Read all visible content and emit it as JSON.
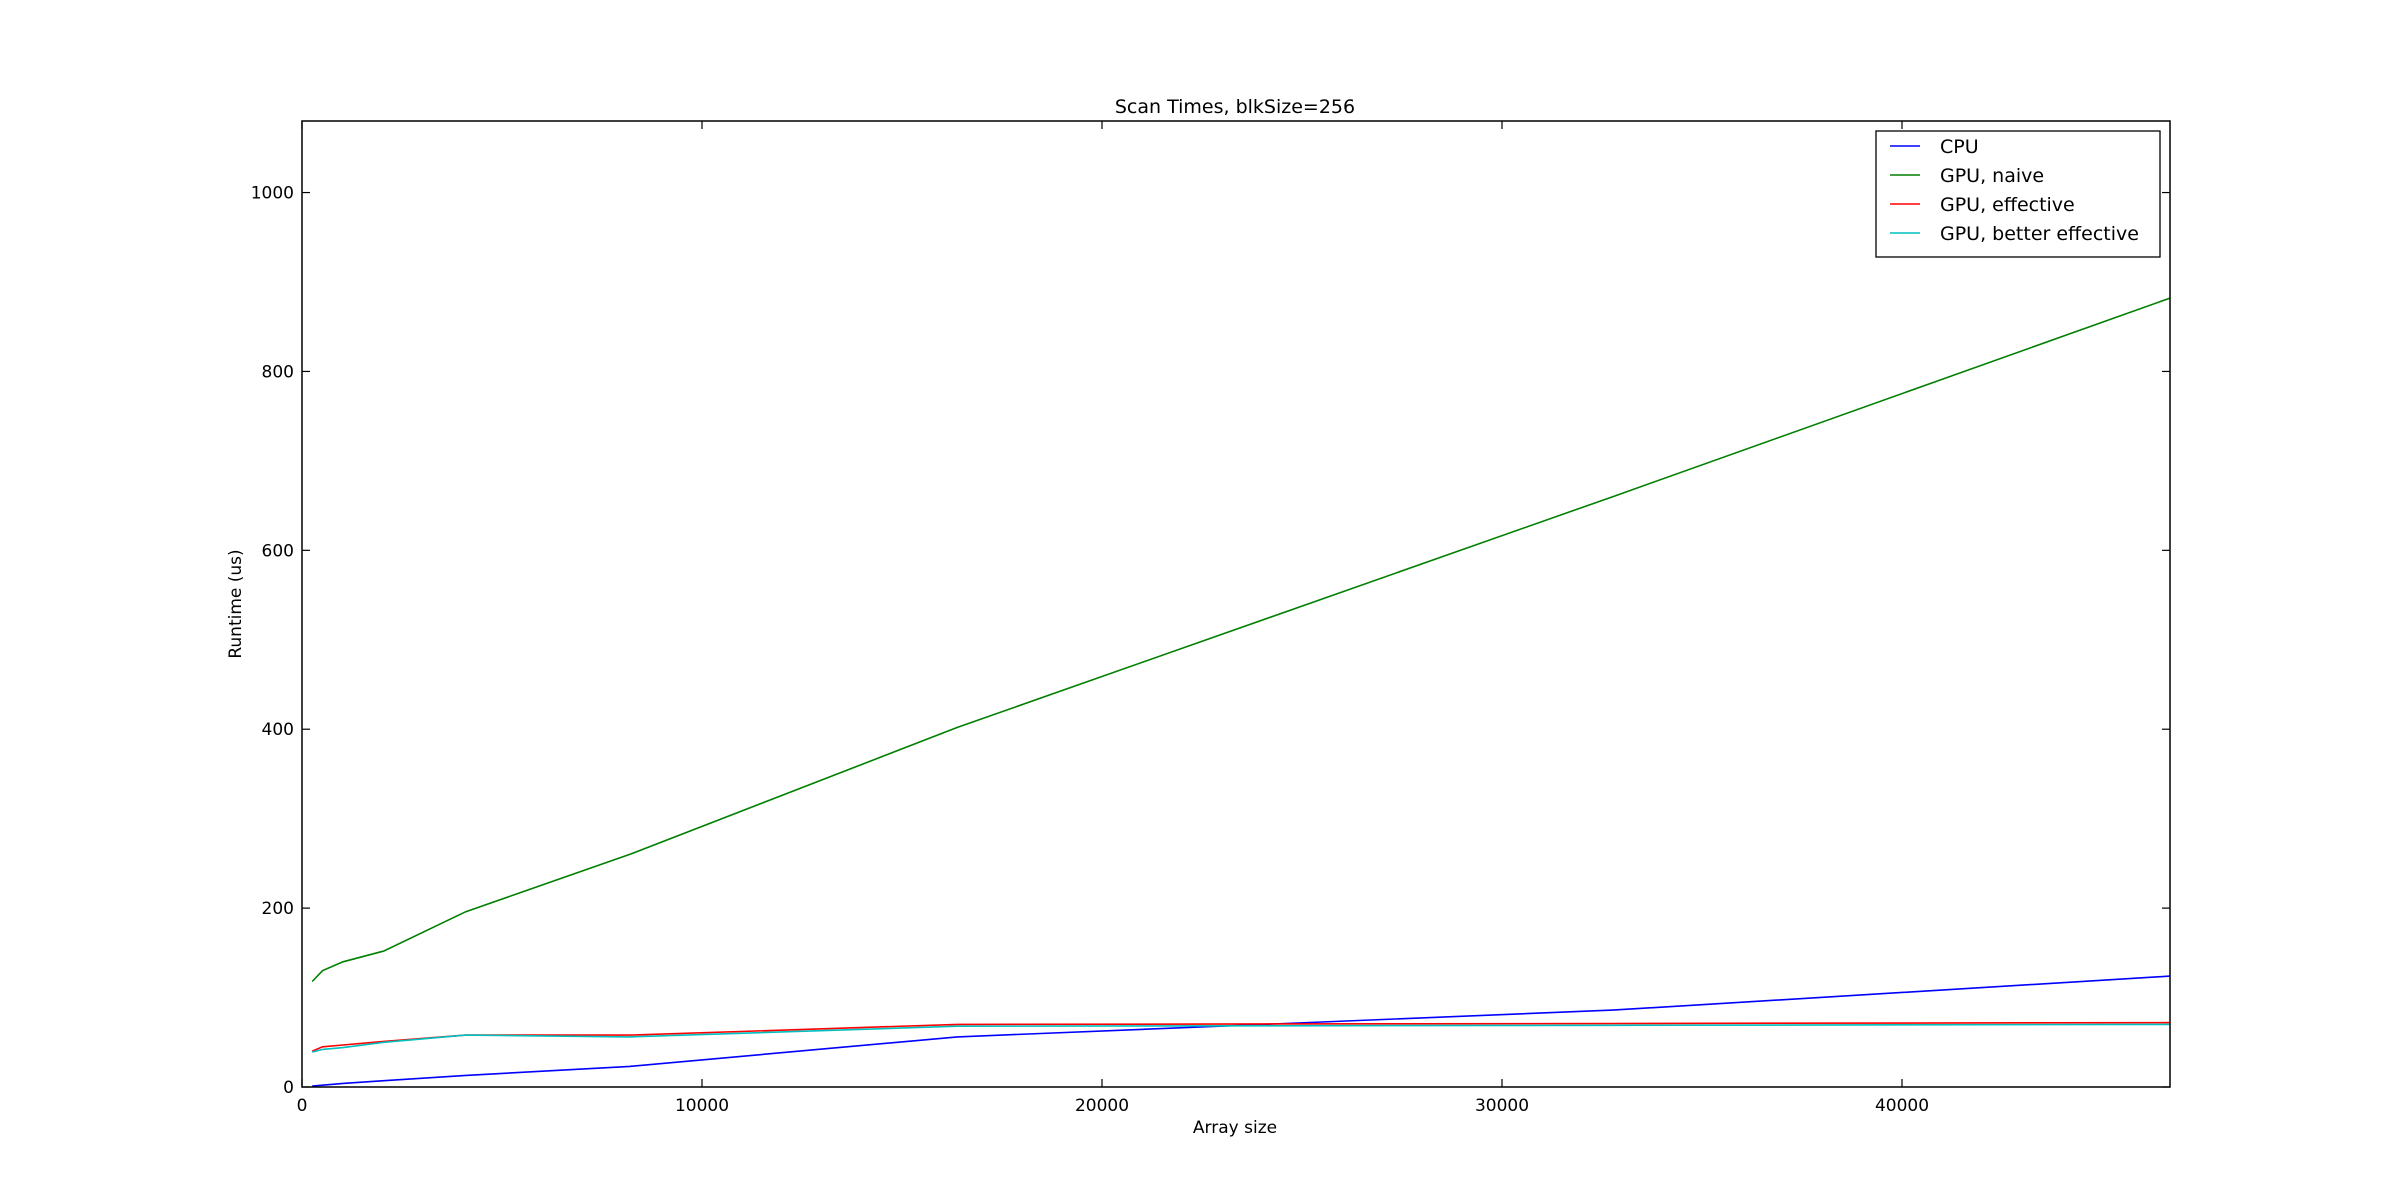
{
  "chart_data": {
    "type": "line",
    "title": "Scan Times, blkSize=256",
    "xlabel": "Array size",
    "ylabel": "Runtime (us)",
    "xlim": [
      0,
      46700
    ],
    "ylim": [
      0,
      1080
    ],
    "xticks": [
      0,
      10000,
      20000,
      30000,
      40000
    ],
    "yticks": [
      0,
      200,
      400,
      600,
      800,
      1000
    ],
    "grid": false,
    "legend_position": "top-right",
    "series": [
      {
        "name": "CPU",
        "color": "#0000ff",
        "x": [
          256,
          512,
          1024,
          2048,
          4096,
          8192,
          16384,
          32768,
          46700
        ],
        "y": [
          1,
          2,
          4,
          7,
          13,
          23,
          56,
          86,
          124
        ]
      },
      {
        "name": "GPU, naive",
        "color": "#008000",
        "x": [
          256,
          512,
          1024,
          2048,
          4096,
          8192,
          16384,
          32768,
          46700
        ],
        "y": [
          118,
          130,
          140,
          152,
          196,
          260,
          402,
          660,
          882
        ]
      },
      {
        "name": "GPU, effective",
        "color": "#ff0000",
        "x": [
          256,
          512,
          1024,
          2048,
          4096,
          8192,
          16384,
          32768,
          46700
        ],
        "y": [
          40,
          45,
          47,
          51,
          58,
          58,
          70,
          71,
          72
        ]
      },
      {
        "name": "GPU, better effective",
        "color": "#00bfbf",
        "x": [
          256,
          512,
          1024,
          2048,
          4096,
          8192,
          16384,
          32768,
          46700
        ],
        "y": [
          39,
          42,
          44,
          50,
          58,
          56,
          68,
          69,
          70
        ]
      }
    ]
  }
}
